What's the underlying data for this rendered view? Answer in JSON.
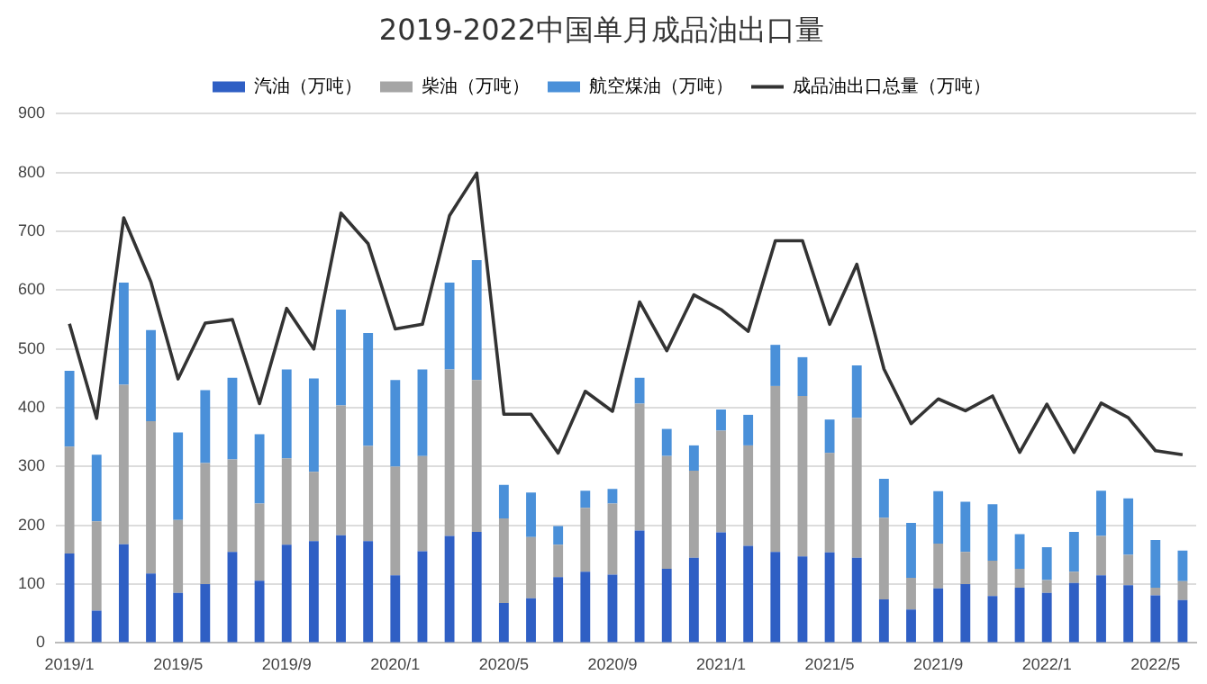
{
  "chart_data": {
    "type": "bar",
    "title": "2019-2022中国单月成品油出口量",
    "stacked": true,
    "categories": [
      "2019/1",
      null,
      null,
      null,
      "2019/5",
      null,
      null,
      null,
      "2019/9",
      null,
      null,
      null,
      "2020/1",
      null,
      null,
      null,
      "2020/5",
      null,
      null,
      null,
      "2020/9",
      null,
      null,
      null,
      "2021/1",
      null,
      null,
      null,
      "2021/5",
      null,
      null,
      null,
      "2021/9",
      null,
      null,
      null,
      "2022/1",
      null,
      null,
      null,
      "2022/5",
      null
    ],
    "series": [
      {
        "name": "汽油（万吨）",
        "color": "#2f5fc4",
        "values": [
          152,
          55,
          168,
          118,
          85,
          100,
          155,
          106,
          167,
          173,
          183,
          173,
          115,
          156,
          182,
          189,
          68,
          76,
          112,
          121,
          116,
          191,
          126,
          145,
          188,
          165,
          155,
          147,
          154,
          145,
          74,
          57,
          93,
          100,
          80,
          94,
          85,
          102,
          115,
          98,
          81,
          73
        ]
      },
      {
        "name": "柴油（万吨）",
        "color": "#a5a5a5",
        "values": [
          182,
          152,
          271,
          259,
          124,
          206,
          157,
          131,
          147,
          118,
          221,
          162,
          185,
          162,
          283,
          258,
          144,
          104,
          55,
          109,
          121,
          216,
          192,
          148,
          173,
          171,
          282,
          273,
          169,
          238,
          139,
          54,
          76,
          55,
          60,
          32,
          22,
          19,
          67,
          52,
          13,
          32
        ]
      },
      {
        "name": "航空煤油（万吨）",
        "color": "#4a90d9",
        "values": [
          129,
          113,
          174,
          155,
          149,
          124,
          139,
          118,
          151,
          159,
          163,
          192,
          147,
          147,
          148,
          204,
          57,
          76,
          32,
          29,
          25,
          44,
          46,
          43,
          36,
          52,
          70,
          66,
          57,
          89,
          66,
          93,
          89,
          85,
          96,
          59,
          56,
          68,
          77,
          96,
          81,
          52
        ]
      },
      {
        "name": "成品油出口总量（万吨）",
        "type": "line",
        "color": "#333333",
        "values": [
          543,
          382,
          723,
          614,
          449,
          544,
          550,
          407,
          569,
          500,
          731,
          679,
          534,
          542,
          727,
          799,
          389,
          389,
          323,
          428,
          394,
          580,
          497,
          592,
          567,
          530,
          684,
          684,
          542,
          644,
          466,
          373,
          415,
          395,
          420,
          324,
          406,
          324,
          408,
          383,
          327,
          320
        ]
      }
    ],
    "ylim": [
      0,
      900
    ],
    "yticks": [
      0,
      100,
      200,
      300,
      400,
      500,
      600,
      700,
      800,
      900
    ],
    "grid": "y",
    "legend": "top",
    "marker": "none"
  }
}
